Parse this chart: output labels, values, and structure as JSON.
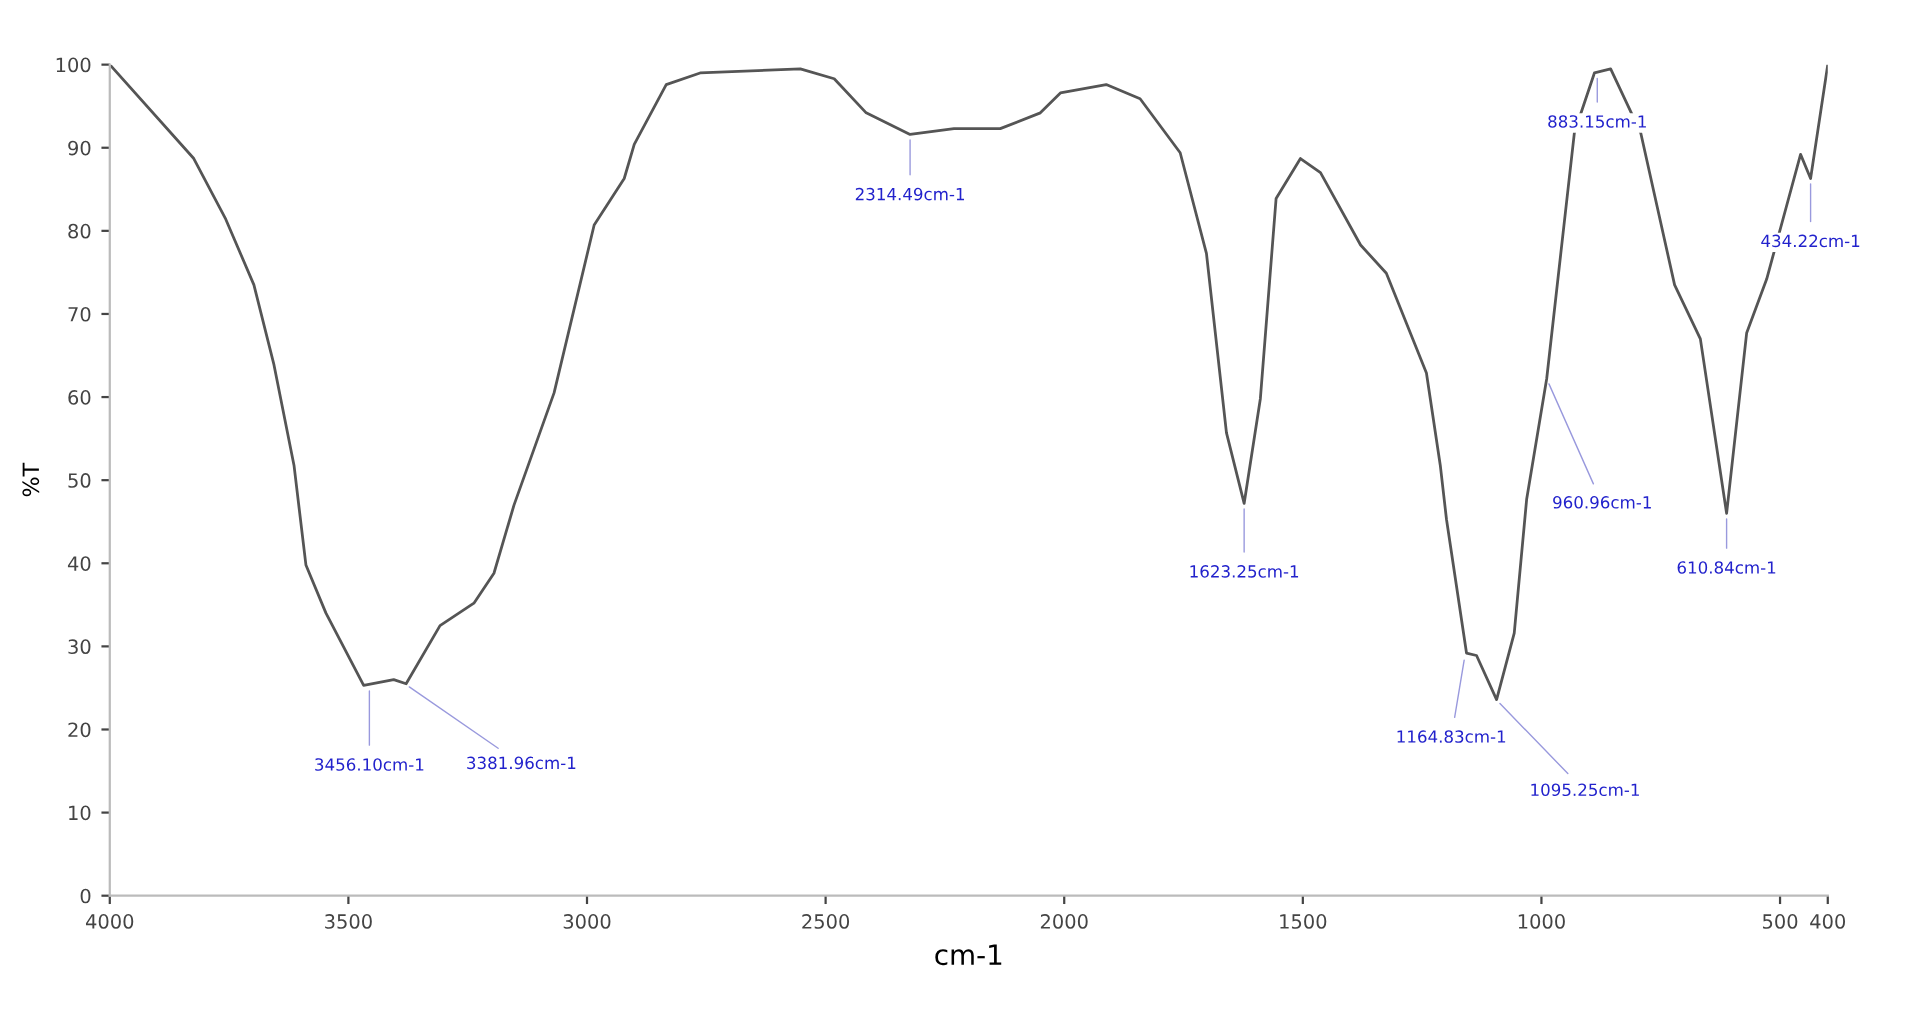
{
  "chart_data": {
    "type": "line",
    "xlabel": "cm-1",
    "ylabel": "%T",
    "color": "#555555",
    "x": [
      4000,
      3824,
      3757,
      3698,
      3656,
      3614,
      3589,
      3547,
      3468,
      3405,
      3379,
      3308,
      3237,
      3195,
      3153,
      3069,
      2985,
      2922,
      2901,
      2834,
      2763,
      2553,
      2482,
      2415,
      2323,
      2231,
      2134,
      2050,
      2008,
      1912,
      1841,
      1757,
      1702,
      1660,
      1623,
      1589,
      1556,
      1505,
      1463,
      1379,
      1325,
      1241,
      1212,
      1199,
      1157,
      1136,
      1094,
      1057,
      1031,
      989,
      931,
      889,
      855,
      792,
      721,
      667,
      612,
      570,
      528,
      457,
      436,
      400
    ],
    "values": [
      100,
      88.7,
      81.4,
      73.5,
      63.9,
      51.8,
      39.8,
      34,
      25.3,
      26,
      25.5,
      32.5,
      35.2,
      38.8,
      47,
      60.5,
      80.7,
      86.3,
      90.4,
      97.6,
      99,
      99.5,
      98.3,
      94.2,
      91.6,
      92.3,
      92.3,
      94.2,
      96.6,
      97.6,
      95.9,
      89.4,
      77.3,
      55.7,
      47.2,
      59.8,
      83.9,
      88.7,
      87,
      78.3,
      74.9,
      62.9,
      51.8,
      45.3,
      29.2,
      28.9,
      23.6,
      31.6,
      47.7,
      62.2,
      91.8,
      99,
      99.5,
      91.8,
      73.5,
      67,
      46,
      67.7,
      74.2,
      89.2,
      86.3,
      100
    ],
    "xlim": [
      4000,
      400
    ],
    "xticks": [
      4000,
      3500,
      3000,
      2500,
      2000,
      1500,
      1000,
      500,
      400
    ],
    "ylim": [
      0,
      100
    ],
    "yticks": [
      0,
      10,
      20,
      30,
      40,
      50,
      60,
      70,
      80,
      90,
      100
    ],
    "grid": false,
    "annotations": [
      {
        "text": "3456.10cm-1",
        "x": 3456,
        "y": 25.3
      },
      {
        "text": "3381.96cm-1",
        "x": 3382,
        "y": 25.5
      },
      {
        "text": "2314.49cm-1",
        "x": 2323,
        "y": 91.6
      },
      {
        "text": "1623.25cm-1",
        "x": 1623,
        "y": 47.2
      },
      {
        "text": "1164.83cm-1",
        "x": 1160,
        "y": 29
      },
      {
        "text": "1095.25cm-1",
        "x": 1095,
        "y": 23.6
      },
      {
        "text": "960.96cm-1",
        "x": 989,
        "y": 62.2
      },
      {
        "text": "883.15cm-1",
        "x": 883,
        "y": 99
      },
      {
        "text": "610.84cm-1",
        "x": 612,
        "y": 46
      },
      {
        "text": "434.22cm-1",
        "x": 436,
        "y": 86.3
      }
    ]
  }
}
